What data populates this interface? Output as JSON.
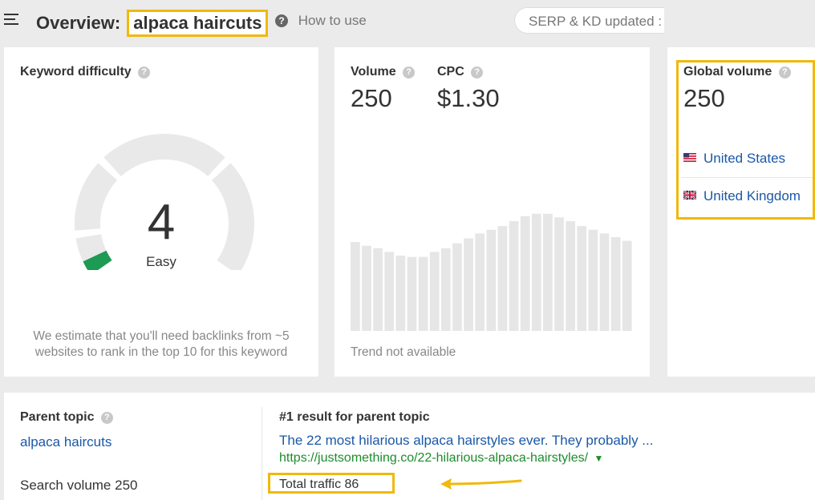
{
  "header": {
    "title_prefix": "Overview:",
    "keyword": "alpaca haircuts",
    "help_link": "How to use",
    "serp_status": "SERP & KD updated :"
  },
  "keyword_difficulty": {
    "label": "Keyword difficulty",
    "value": "4",
    "rating": "Easy",
    "score": 4,
    "accent_color": "#1d9a54",
    "note": "We estimate that you'll need backlinks from ~5 websites to rank in the top 10 for this keyword"
  },
  "volume": {
    "label": "Volume",
    "value": "250",
    "cpc_label": "CPC",
    "cpc_value": "$1.30",
    "trend_note": "Trend not available",
    "trend_bars": [
      0.72,
      0.69,
      0.67,
      0.64,
      0.61,
      0.6,
      0.6,
      0.64,
      0.67,
      0.71,
      0.75,
      0.79,
      0.82,
      0.85,
      0.89,
      0.93,
      0.95,
      0.95,
      0.92,
      0.89,
      0.85,
      0.82,
      0.79,
      0.76,
      0.73
    ],
    "trend_color": "#e6e6e6"
  },
  "global_volume": {
    "label": "Global volume",
    "value": "250",
    "countries": [
      {
        "name": "United States",
        "flag": "us-flag-icon"
      },
      {
        "name": "United Kingdom",
        "flag": "uk-flag-icon"
      }
    ]
  },
  "parent_topic": {
    "label": "Parent topic",
    "link": "alpaca haircuts",
    "search_volume": "Search volume 250",
    "top_result_label": "#1 result for parent topic",
    "top_result_title": "The 22 most hilarious alpaca hairstyles ever. They probably ...",
    "top_result_url": "https://justsomething.co/22-hilarious-alpaca-hairstyles/",
    "total_traffic": "Total traffic 86"
  },
  "colors": {
    "highlight": "#f0b90b",
    "link": "#1a58a8",
    "url": "#1d8c2c"
  }
}
